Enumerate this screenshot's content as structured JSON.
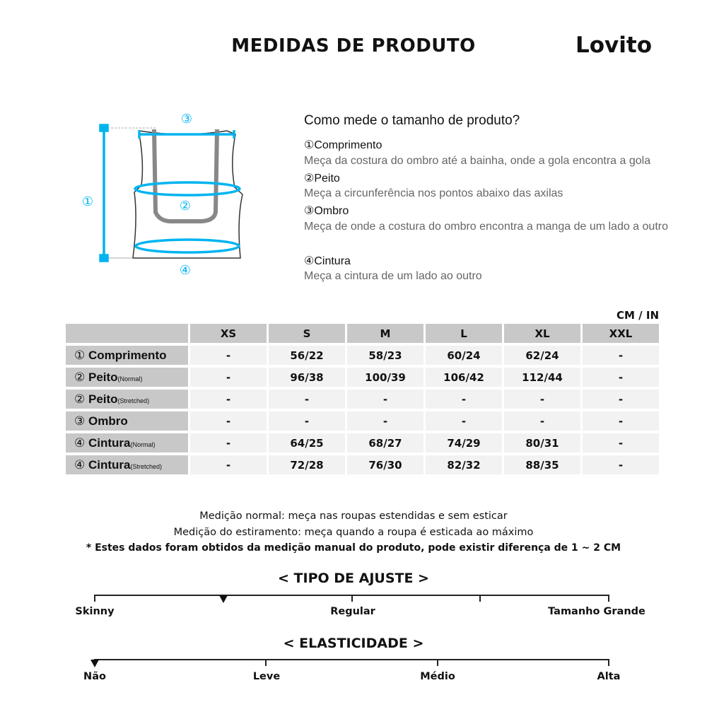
{
  "title": "MEDIDAS DE PRODUTO",
  "brand": "Lovito",
  "diagram": {
    "accent": "#00b4f0",
    "labels": [
      "①",
      "②",
      "③",
      "④"
    ]
  },
  "howto": {
    "question": "Como mede o tamanho de produto?",
    "items": [
      {
        "head": "①Comprimento",
        "desc": "Meça da costura do ombro até a bainha, onde a gola encontra a gola"
      },
      {
        "head": "②Peito",
        "desc": "Meça a circunferência nos pontos abaixo das axilas"
      },
      {
        "head": "③Ombro",
        "desc": "Meça de onde a costura do ombro encontra a manga de um lado a outro"
      },
      {
        "head": "④Cintura",
        "desc": "Meça a cintura de um lado ao outro"
      }
    ]
  },
  "unit": "CM / IN",
  "table": {
    "sizes": [
      "XS",
      "S",
      "M",
      "L",
      "XL",
      "XXL"
    ],
    "rows": [
      {
        "num": "①",
        "name": "Comprimento",
        "sub": "",
        "values": [
          "-",
          "56/22",
          "58/23",
          "60/24",
          "62/24",
          "-"
        ]
      },
      {
        "num": "②",
        "name": "Peito",
        "sub": "(Normal)",
        "values": [
          "-",
          "96/38",
          "100/39",
          "106/42",
          "112/44",
          "-"
        ]
      },
      {
        "num": "②",
        "name": "Peito",
        "sub": "(Stretched)",
        "values": [
          "-",
          "-",
          "-",
          "-",
          "-",
          "-"
        ]
      },
      {
        "num": "③",
        "name": "Ombro",
        "sub": "",
        "values": [
          "-",
          "-",
          "-",
          "-",
          "-",
          "-"
        ]
      },
      {
        "num": "④",
        "name": "Cintura",
        "sub": "(Normal)",
        "values": [
          "-",
          "64/25",
          "68/27",
          "74/29",
          "80/31",
          "-"
        ]
      },
      {
        "num": "④",
        "name": "Cintura",
        "sub": "(Stretched)",
        "values": [
          "-",
          "72/28",
          "76/30",
          "82/32",
          "88/35",
          "-"
        ]
      }
    ]
  },
  "notes": [
    "Medição normal: meça nas roupas estendidas e sem esticar",
    "Medição do estiramento: meça quando a roupa é esticada ao máximo",
    "* Estes dados foram obtidos da medição manual do produto, pode existir diferença de 1 ~ 2 CM"
  ],
  "fit": {
    "title": "< TIPO DE AJUSTE >",
    "labels": [
      "Skinny",
      "Regular",
      "Tamanho Grande"
    ],
    "level": 0.25
  },
  "elasticity": {
    "title": "< ELASTICIDADE >",
    "labels": [
      "Não",
      "Leve",
      "Médio",
      "Alta"
    ],
    "level": 0
  }
}
